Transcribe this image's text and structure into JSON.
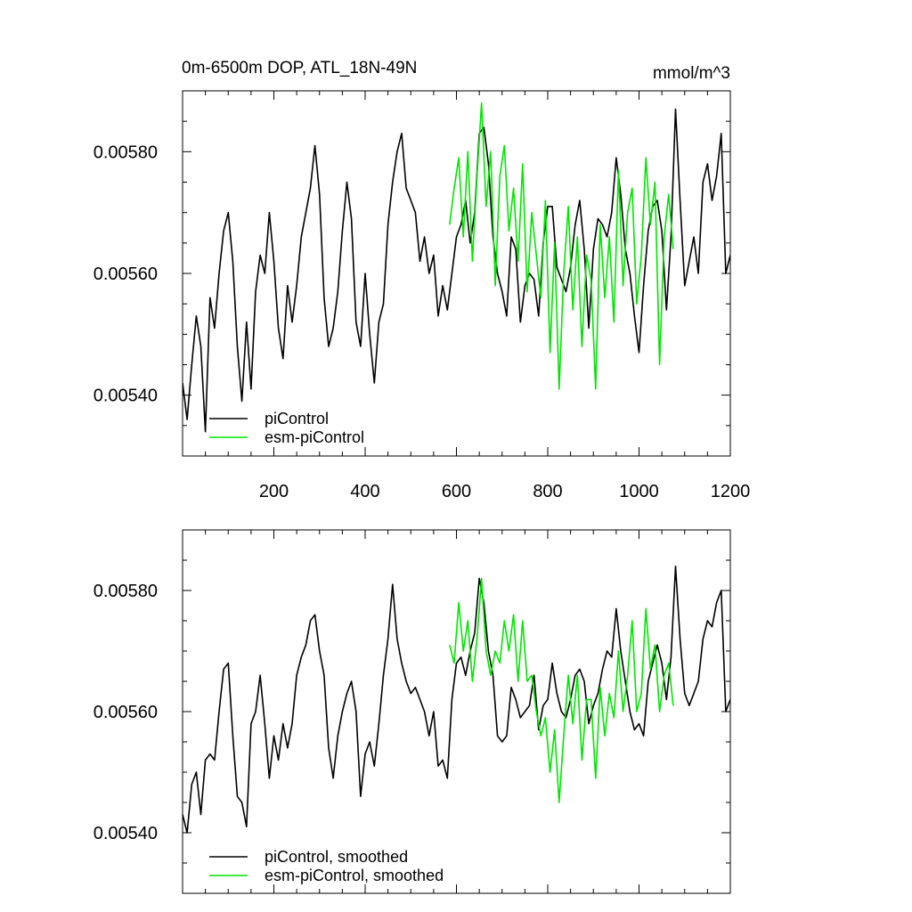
{
  "title_left": "0m-6500m DOP, ATL_18N-49N",
  "title_right": "mmol/m^3",
  "colors": {
    "picontrol": "#000000",
    "esm": "#00e600",
    "axis": "#000000"
  },
  "chart_data": [
    {
      "type": "line",
      "title": "0m-6500m DOP, ATL_18N-49N",
      "units": "mmol/m^3",
      "xlim": [
        0,
        1200
      ],
      "ylim": [
        0.0053,
        0.0059
      ],
      "x_major_ticks": [
        200,
        400,
        600,
        800,
        1000,
        1200
      ],
      "x_tick_labels": [
        "200",
        "400",
        "600",
        "800",
        "1000",
        "1200"
      ],
      "y_major_ticks": [
        0.0054,
        0.0056,
        0.0058
      ],
      "y_tick_labels": [
        "0.00540",
        "0.00560",
        "0.00580"
      ],
      "legend": [
        "piControl",
        "esm-piControl"
      ],
      "legend_position": "bottom-left",
      "series": [
        {
          "name": "piControl",
          "x": [
            0,
            10,
            20,
            30,
            40,
            50,
            60,
            70,
            80,
            90,
            100,
            110,
            120,
            130,
            140,
            150,
            160,
            170,
            180,
            190,
            200,
            210,
            220,
            230,
            240,
            250,
            260,
            270,
            280,
            290,
            300,
            310,
            320,
            330,
            340,
            350,
            360,
            370,
            380,
            390,
            400,
            410,
            420,
            430,
            440,
            450,
            460,
            470,
            480,
            490,
            500,
            510,
            520,
            530,
            540,
            550,
            560,
            570,
            580,
            590,
            600,
            610,
            620,
            630,
            640,
            650,
            660,
            670,
            680,
            690,
            700,
            710,
            720,
            730,
            740,
            750,
            760,
            770,
            780,
            790,
            800,
            810,
            820,
            830,
            840,
            850,
            860,
            870,
            880,
            890,
            900,
            910,
            920,
            930,
            940,
            950,
            960,
            970,
            980,
            990,
            1000,
            1010,
            1020,
            1030,
            1040,
            1050,
            1060,
            1070,
            1080,
            1090,
            1100,
            1110,
            1120,
            1130,
            1140,
            1150,
            1160,
            1170,
            1180,
            1190,
            1200
          ],
          "values": [
            0.00542,
            0.00536,
            0.00545,
            0.00553,
            0.00548,
            0.00534,
            0.00556,
            0.00551,
            0.0056,
            0.00567,
            0.0057,
            0.00562,
            0.00548,
            0.00539,
            0.00552,
            0.00541,
            0.00557,
            0.00563,
            0.0056,
            0.0057,
            0.00562,
            0.00551,
            0.00546,
            0.00558,
            0.00552,
            0.00558,
            0.00566,
            0.0057,
            0.00574,
            0.00581,
            0.00573,
            0.00556,
            0.00548,
            0.00551,
            0.00557,
            0.00567,
            0.00575,
            0.00569,
            0.00552,
            0.00548,
            0.0056,
            0.0055,
            0.00542,
            0.00552,
            0.00555,
            0.00568,
            0.00575,
            0.0058,
            0.00583,
            0.00574,
            0.00572,
            0.0057,
            0.00562,
            0.00566,
            0.0056,
            0.00563,
            0.00553,
            0.00558,
            0.00554,
            0.0056,
            0.00566,
            0.00568,
            0.00572,
            0.00565,
            0.0057,
            0.00583,
            0.00584,
            0.00578,
            0.00566,
            0.0056,
            0.00557,
            0.00553,
            0.00566,
            0.00564,
            0.00552,
            0.00558,
            0.0056,
            0.00559,
            0.00553,
            0.00565,
            0.00571,
            0.00571,
            0.00561,
            0.00559,
            0.00557,
            0.00561,
            0.00568,
            0.00572,
            0.00564,
            0.00551,
            0.00564,
            0.00569,
            0.00568,
            0.00566,
            0.0057,
            0.00579,
            0.00573,
            0.00564,
            0.0056,
            0.00553,
            0.00547,
            0.00558,
            0.00567,
            0.00571,
            0.00572,
            0.00567,
            0.00554,
            0.00566,
            0.00587,
            0.00572,
            0.00558,
            0.00562,
            0.00566,
            0.0056,
            0.00575,
            0.00578,
            0.00572,
            0.00576,
            0.00583,
            0.0056,
            0.00563
          ]
        },
        {
          "name": "esm-piControl",
          "x": [
            585,
            595,
            605,
            615,
            625,
            635,
            645,
            655,
            665,
            675,
            685,
            695,
            705,
            715,
            725,
            735,
            745,
            755,
            765,
            775,
            785,
            795,
            805,
            815,
            825,
            835,
            845,
            855,
            865,
            875,
            885,
            895,
            905,
            915,
            925,
            935,
            945,
            955,
            965,
            975,
            985,
            995,
            1005,
            1015,
            1025,
            1035,
            1045,
            1055,
            1065,
            1075
          ],
          "values": [
            0.00568,
            0.00574,
            0.00579,
            0.00566,
            0.0058,
            0.00562,
            0.00576,
            0.00588,
            0.00571,
            0.0058,
            0.00558,
            0.00576,
            0.00581,
            0.00567,
            0.00574,
            0.00562,
            0.00578,
            0.00557,
            0.0057,
            0.00563,
            0.00556,
            0.00572,
            0.00547,
            0.00565,
            0.00541,
            0.0056,
            0.00571,
            0.00554,
            0.00566,
            0.00548,
            0.00563,
            0.00559,
            0.00541,
            0.00568,
            0.00556,
            0.00566,
            0.00552,
            0.00577,
            0.00558,
            0.0057,
            0.00574,
            0.00555,
            0.00563,
            0.00579,
            0.00568,
            0.00575,
            0.00545,
            0.00566,
            0.00573,
            0.00564
          ]
        }
      ]
    },
    {
      "type": "line",
      "title": "",
      "units": "mmol/m^3",
      "xlim": [
        0,
        1200
      ],
      "ylim": [
        0.0053,
        0.0059
      ],
      "x_major_ticks": [
        200,
        400,
        600,
        800,
        1000,
        1200
      ],
      "y_major_ticks": [
        0.0054,
        0.0056,
        0.0058
      ],
      "y_tick_labels": [
        "0.00540",
        "0.00560",
        "0.00580"
      ],
      "legend": [
        "piControl, smoothed",
        "esm-piControl, smoothed"
      ],
      "legend_position": "bottom-left",
      "series": [
        {
          "name": "piControl, smoothed",
          "x": [
            0,
            10,
            20,
            30,
            40,
            50,
            60,
            70,
            80,
            90,
            100,
            110,
            120,
            130,
            140,
            150,
            160,
            170,
            180,
            190,
            200,
            210,
            220,
            230,
            240,
            250,
            260,
            270,
            280,
            290,
            300,
            310,
            320,
            330,
            340,
            350,
            360,
            370,
            380,
            390,
            400,
            410,
            420,
            430,
            440,
            450,
            460,
            470,
            480,
            490,
            500,
            510,
            520,
            530,
            540,
            550,
            560,
            570,
            580,
            590,
            600,
            610,
            620,
            630,
            640,
            650,
            660,
            670,
            680,
            690,
            700,
            710,
            720,
            730,
            740,
            750,
            760,
            770,
            780,
            790,
            800,
            810,
            820,
            830,
            840,
            850,
            860,
            870,
            880,
            890,
            900,
            910,
            920,
            930,
            940,
            950,
            960,
            970,
            980,
            990,
            1000,
            1010,
            1020,
            1030,
            1040,
            1050,
            1060,
            1070,
            1080,
            1090,
            1100,
            1110,
            1120,
            1130,
            1140,
            1150,
            1160,
            1170,
            1180,
            1190,
            1200
          ],
          "values": [
            0.00543,
            0.0054,
            0.00548,
            0.0055,
            0.00543,
            0.00552,
            0.00553,
            0.00552,
            0.0056,
            0.00567,
            0.00568,
            0.00556,
            0.00546,
            0.00545,
            0.00541,
            0.00558,
            0.0056,
            0.00566,
            0.00558,
            0.00549,
            0.00556,
            0.00552,
            0.00558,
            0.00554,
            0.00558,
            0.00566,
            0.00569,
            0.00571,
            0.00575,
            0.00576,
            0.0057,
            0.00566,
            0.00554,
            0.00549,
            0.00556,
            0.0056,
            0.00563,
            0.00565,
            0.0056,
            0.00546,
            0.00553,
            0.00555,
            0.00551,
            0.00558,
            0.00566,
            0.00572,
            0.00581,
            0.00572,
            0.00568,
            0.00565,
            0.00563,
            0.00564,
            0.00562,
            0.0056,
            0.00556,
            0.0056,
            0.00551,
            0.00552,
            0.00549,
            0.00562,
            0.00568,
            0.00569,
            0.00566,
            0.0057,
            0.00573,
            0.00582,
            0.00578,
            0.0057,
            0.00566,
            0.00556,
            0.00555,
            0.00556,
            0.00564,
            0.00562,
            0.00559,
            0.0056,
            0.00561,
            0.00566,
            0.00557,
            0.00561,
            0.00562,
            0.00568,
            0.00563,
            0.0056,
            0.00559,
            0.00562,
            0.00566,
            0.00567,
            0.00565,
            0.00558,
            0.00561,
            0.00563,
            0.00567,
            0.0057,
            0.00569,
            0.00577,
            0.0057,
            0.00565,
            0.0056,
            0.00557,
            0.00558,
            0.00556,
            0.00565,
            0.00568,
            0.00571,
            0.00568,
            0.00562,
            0.00569,
            0.00584,
            0.00572,
            0.00563,
            0.00561,
            0.00563,
            0.00565,
            0.00572,
            0.00575,
            0.00574,
            0.00578,
            0.0058,
            0.0056,
            0.00562
          ]
        },
        {
          "name": "esm-piControl, smoothed",
          "x": [
            585,
            595,
            605,
            615,
            625,
            635,
            645,
            655,
            665,
            675,
            685,
            695,
            705,
            715,
            725,
            735,
            745,
            755,
            765,
            775,
            785,
            795,
            805,
            815,
            825,
            835,
            845,
            855,
            865,
            875,
            885,
            895,
            905,
            915,
            925,
            935,
            945,
            955,
            965,
            975,
            985,
            995,
            1005,
            1015,
            1025,
            1035,
            1045,
            1055,
            1065,
            1075
          ],
          "values": [
            0.00571,
            0.00568,
            0.00578,
            0.0057,
            0.00575,
            0.00565,
            0.00572,
            0.00582,
            0.0057,
            0.00566,
            0.0057,
            0.00568,
            0.00575,
            0.0057,
            0.00576,
            0.00565,
            0.00575,
            0.00565,
            0.00566,
            0.0056,
            0.00556,
            0.00559,
            0.0055,
            0.00557,
            0.00545,
            0.00556,
            0.00566,
            0.00558,
            0.00566,
            0.00552,
            0.00562,
            0.00562,
            0.00549,
            0.00564,
            0.00556,
            0.00563,
            0.00559,
            0.0057,
            0.0056,
            0.00566,
            0.00575,
            0.0056,
            0.00563,
            0.00577,
            0.00567,
            0.00571,
            0.0056,
            0.00566,
            0.00568,
            0.00561
          ]
        }
      ]
    }
  ]
}
